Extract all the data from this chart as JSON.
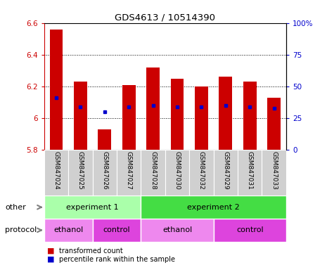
{
  "title": "GDS4613 / 10514390",
  "samples": [
    "GSM847024",
    "GSM847025",
    "GSM847026",
    "GSM847027",
    "GSM847028",
    "GSM847030",
    "GSM847032",
    "GSM847029",
    "GSM847031",
    "GSM847033"
  ],
  "bar_bottom": 5.8,
  "bar_top": [
    6.56,
    6.23,
    5.93,
    6.21,
    6.32,
    6.25,
    6.2,
    6.26,
    6.23,
    6.13
  ],
  "blue_dot_y": [
    6.13,
    6.07,
    6.04,
    6.07,
    6.08,
    6.07,
    6.07,
    6.08,
    6.07,
    6.06
  ],
  "ylim": [
    5.8,
    6.6
  ],
  "y2lim": [
    0,
    100
  ],
  "yticks": [
    5.8,
    6.0,
    6.2,
    6.4,
    6.6
  ],
  "ytick_labels": [
    "5.8",
    "6",
    "6.2",
    "6.4",
    "6.6"
  ],
  "y2ticks": [
    0,
    25,
    50,
    75,
    100
  ],
  "y2tick_labels": [
    "0",
    "25",
    "50",
    "75",
    "100%"
  ],
  "bar_color": "#cc0000",
  "dot_color": "#0000cc",
  "axis_color_left": "#cc0000",
  "axis_color_right": "#0000cc",
  "bg_color": "#ffffff",
  "other_label": "other",
  "protocol_label": "protocol",
  "experiment1_label": "experiment 1",
  "experiment2_label": "experiment 2",
  "ethanol1_label": "ethanol",
  "control1_label": "control",
  "ethanol2_label": "ethanol",
  "control2_label": "control",
  "exp1_color": "#aaffaa",
  "exp2_color": "#44dd44",
  "ethanol_color": "#ee88ee",
  "control_color": "#dd44dd",
  "sample_bg": "#d0d0d0",
  "legend_red": "transformed count",
  "legend_blue": "percentile rank within the sample"
}
